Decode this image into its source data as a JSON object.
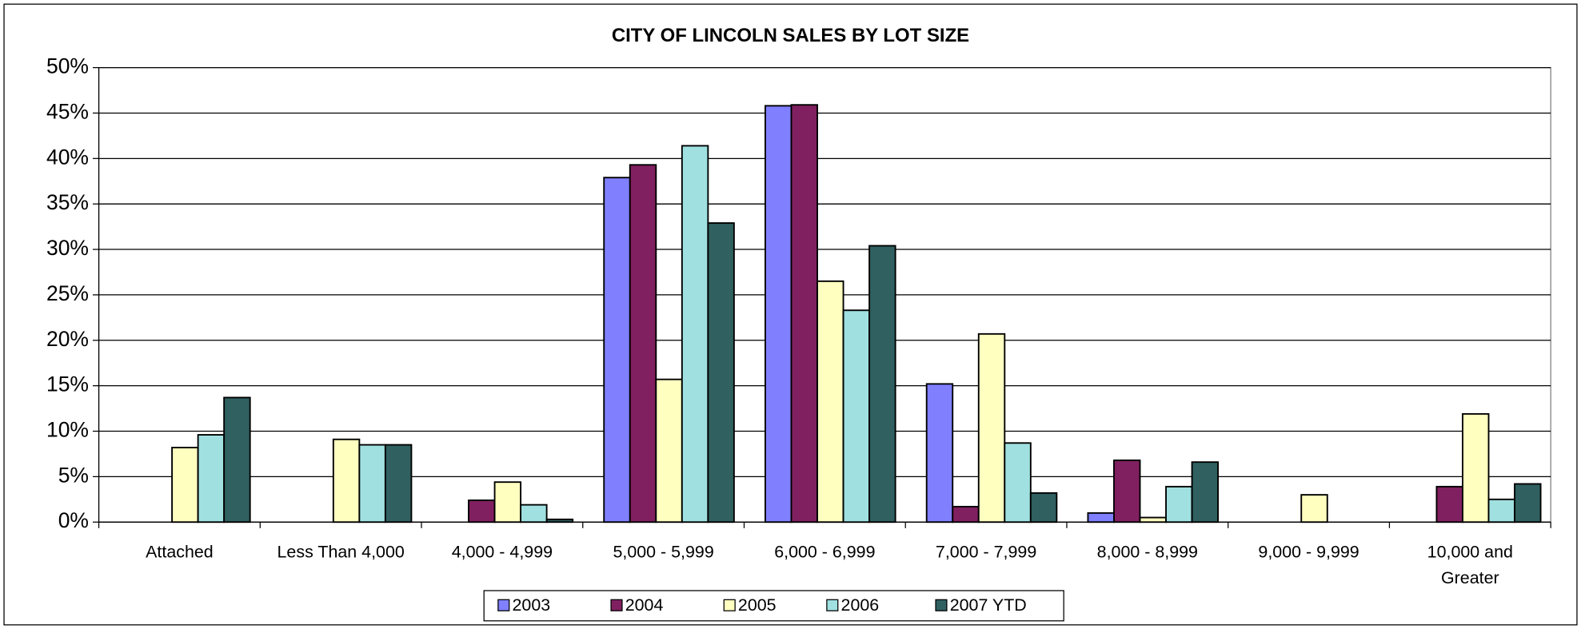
{
  "chart_data": {
    "type": "bar",
    "title": "CITY OF LINCOLN SALES BY LOT SIZE",
    "categories": [
      "Attached",
      "Less Than 4,000",
      "4,000 - 4,999",
      "5,000 - 5,999",
      "6,000 - 6,999",
      "7,000 - 7,999",
      "8,000 - 8,999",
      "9,000 - 9,999",
      "10,000 and Greater"
    ],
    "series": [
      {
        "name": "2003",
        "color": "#8080ff",
        "values": [
          0,
          0,
          0,
          37.9,
          45.8,
          15.2,
          1.0,
          0,
          0
        ]
      },
      {
        "name": "2004",
        "color": "#802060",
        "values": [
          0,
          0,
          2.4,
          39.3,
          45.9,
          1.7,
          6.8,
          0,
          3.9
        ]
      },
      {
        "name": "2005",
        "color": "#ffffc0",
        "values": [
          8.2,
          9.1,
          4.4,
          15.7,
          26.5,
          20.7,
          0.5,
          3.0,
          11.9
        ]
      },
      {
        "name": "2006",
        "color": "#a0e0e0",
        "values": [
          9.6,
          8.5,
          1.9,
          41.4,
          23.3,
          8.7,
          3.9,
          0,
          2.5
        ]
      },
      {
        "name": "2007 YTD",
        "color": "#306060",
        "values": [
          13.7,
          8.5,
          0.3,
          32.9,
          30.4,
          3.2,
          6.6,
          0,
          4.2
        ]
      }
    ],
    "ylim": [
      0,
      50
    ],
    "yticks": [
      {
        "value": 0,
        "label": "0%"
      },
      {
        "value": 5,
        "label": "5%"
      },
      {
        "value": 10,
        "label": "10%"
      },
      {
        "value": 15,
        "label": "15%"
      },
      {
        "value": 20,
        "label": "20%"
      },
      {
        "value": 25,
        "label": "25%"
      },
      {
        "value": 30,
        "label": "30%"
      },
      {
        "value": 35,
        "label": "35%"
      },
      {
        "value": 40,
        "label": "40%"
      },
      {
        "value": 45,
        "label": "45%"
      },
      {
        "value": 50,
        "label": "50%"
      }
    ],
    "grid": true,
    "legend": "bottom"
  }
}
